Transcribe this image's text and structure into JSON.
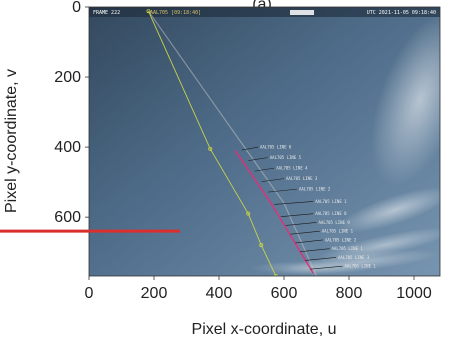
{
  "chart_data": {
    "type": "scatter",
    "title_partial": "(a)",
    "xlabel": "Pixel x-coordinate, u",
    "ylabel": "Pixel y-coordinate, v",
    "xlim": [
      0,
      1080
    ],
    "ylim": [
      768,
      0
    ],
    "xticks": [
      0,
      200,
      400,
      600,
      800,
      1000
    ],
    "yticks": [
      0,
      200,
      400,
      600
    ],
    "background": "camera image of sky",
    "overlay": {
      "frame_label": "FRAME 222",
      "flight_label": "AAL705 [09:18:40]",
      "timestamp": "UTC 2021-11-05 09:18:40"
    },
    "trajectory": {
      "color": "#c8d24a",
      "points": [
        [
          183,
          12
        ],
        [
          373,
          405
        ],
        [
          490,
          590
        ],
        [
          530,
          680
        ],
        [
          575,
          768
        ]
      ]
    },
    "contrail_segment": {
      "color": "#e0307a",
      "points": [
        [
          450,
          410
        ],
        [
          560,
          560
        ],
        [
          690,
          760
        ]
      ]
    },
    "secondary_track": {
      "color": "#c0c0c0",
      "points": [
        [
          183,
          12
        ],
        [
          600,
          560
        ],
        [
          700,
          768
        ]
      ]
    },
    "lines": [
      {
        "label": "AAL705 LINE 6",
        "v": 400,
        "u0": 470,
        "u1": 520
      },
      {
        "label": "AAL705 LINE 5",
        "v": 430,
        "u0": 490,
        "u1": 550
      },
      {
        "label": "AAL705 LINE 4",
        "v": 460,
        "u0": 510,
        "u1": 570
      },
      {
        "label": "AAL705 LINE 3",
        "v": 490,
        "u0": 530,
        "u1": 600
      },
      {
        "label": "AAL705 LINE 2",
        "v": 520,
        "u0": 550,
        "u1": 640
      },
      {
        "label": "AAL705 LINE 1",
        "v": 555,
        "u0": 570,
        "u1": 690
      },
      {
        "label": "AAL705 LINE 8",
        "v": 590,
        "u0": 590,
        "u1": 690
      },
      {
        "label": "AAL705 LINE 9",
        "v": 615,
        "u0": 605,
        "u1": 700
      },
      {
        "label": "AAL705 LINE 1",
        "v": 640,
        "u0": 620,
        "u1": 710
      },
      {
        "label": "AAL705 LINE 2",
        "v": 665,
        "u0": 635,
        "u1": 720
      },
      {
        "label": "AAL705 LINE 1",
        "v": 690,
        "u0": 650,
        "u1": 740
      },
      {
        "label": "AAL705 LINE 3",
        "v": 715,
        "u0": 665,
        "u1": 760
      },
      {
        "label": "AAL705 LINE 1",
        "v": 740,
        "u0": 680,
        "u1": 780
      }
    ],
    "red_marker": {
      "color": "#d9302e",
      "v": 640,
      "u_start": -300,
      "u_end": 280
    }
  }
}
